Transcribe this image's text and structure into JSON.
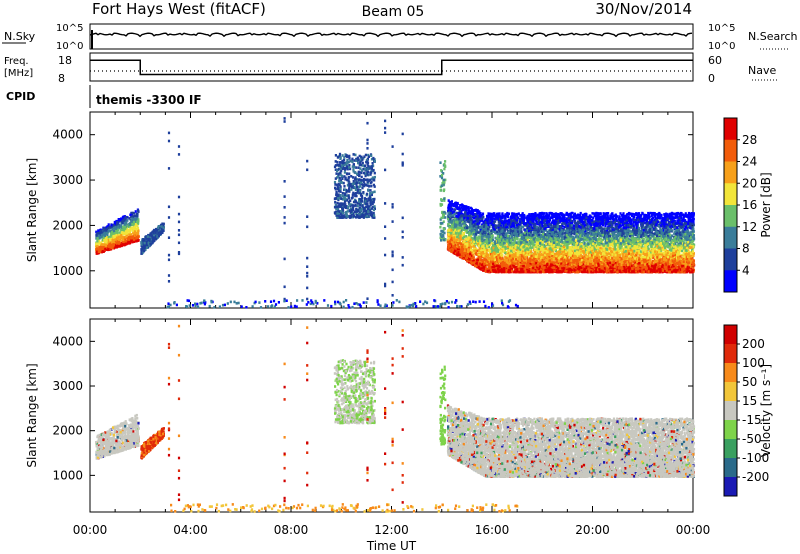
{
  "header": {
    "station": "Fort Hays West (fitACF)",
    "beam": "Beam 05",
    "date": "30/Nov/2014"
  },
  "noise_panel": {
    "left_label": "N.Sky",
    "right_label": "N.Search",
    "left_ticks": [
      "10^5",
      "10^0"
    ],
    "right_ticks": [
      "10^5",
      "10^0"
    ]
  },
  "freq_panel": {
    "left_label_1": "Freq.",
    "left_label_2": "[MHz]",
    "right_label": "Nave",
    "left_ticks": [
      "18",
      "8"
    ],
    "right_ticks": [
      "60",
      "0"
    ],
    "freq_levels": [
      {
        "from": "00:00",
        "to": "02:00",
        "value": 16
      },
      {
        "from": "02:00",
        "to": "14:00",
        "value": 10.5
      },
      {
        "from": "14:00",
        "to": "24:00",
        "value": 16
      }
    ]
  },
  "cpid": {
    "label": "CPID",
    "mode": "themis -3300 IF"
  },
  "power_panel": {
    "ylabel": "Slant Range [km]",
    "yticks": [
      "4000",
      "3000",
      "2000",
      "1000"
    ],
    "colorbar_label": "Power [dB]",
    "colorbar_ticks": [
      "28",
      "24",
      "20",
      "16",
      "12",
      "8",
      "4"
    ],
    "colors": [
      "#0000ff",
      "#1e3f9c",
      "#3a7d9a",
      "#6abf6a",
      "#f2e53a",
      "#f7a01a",
      "#f25c0a",
      "#e00000"
    ]
  },
  "velocity_panel": {
    "ylabel": "Slant Range [km]",
    "yticks": [
      "4000",
      "3000",
      "2000",
      "1000"
    ],
    "colorbar_label": "Velocity [m s⁻¹]",
    "colorbar_ticks": [
      "200",
      "100",
      "50",
      "15",
      "-15",
      "-50",
      "-100",
      "-200"
    ],
    "colors": [
      "#1a1ab4",
      "#2a6a8a",
      "#3aa060",
      "#7ed34a",
      "#c8c8c0",
      "#f2c63a",
      "#f78a1a",
      "#e02a0a",
      "#d00000"
    ]
  },
  "xaxis": {
    "label": "Time UT",
    "ticks": [
      "00:00",
      "04:00",
      "08:00",
      "12:00",
      "16:00",
      "20:00",
      "00:00"
    ]
  },
  "chart_data": {
    "type": "heatmap",
    "x_range_hours": [
      0,
      24
    ],
    "y_range_km": [
      180,
      4500
    ],
    "scatter_regions": [
      {
        "t_start": 0.2,
        "t_end": 1.9,
        "range_low": 1400,
        "range_high": 2400,
        "note_power_db": "12-28"
      },
      {
        "t_start": 2.0,
        "t_end": 2.9,
        "range_low": 1400,
        "range_high": 2100
      },
      {
        "t_start": 9.7,
        "t_end": 11.3,
        "range_low": 2200,
        "range_high": 3600
      },
      {
        "t_start": 13.9,
        "t_end": 14.1,
        "range_low": 1700,
        "range_high": 3500
      },
      {
        "t_start": 14.2,
        "t_end": 24.0,
        "range_low": 900,
        "range_high": 2600,
        "note_power_db": "8-28"
      }
    ]
  }
}
